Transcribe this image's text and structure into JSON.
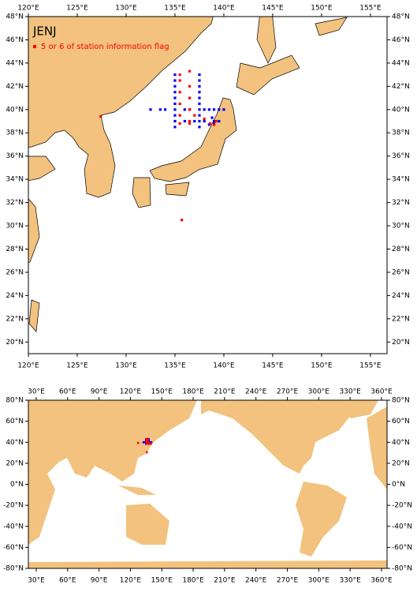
{
  "chart_data": [
    {
      "type": "scatter",
      "title": "JENJ",
      "xlim": [
        120,
        156.7
      ],
      "ylim": [
        19,
        48
      ],
      "xticks": [
        {
          "value": 120,
          "label": "120°E"
        },
        {
          "value": 125,
          "label": "125°E"
        },
        {
          "value": 130,
          "label": "130°E"
        },
        {
          "value": 135,
          "label": "135°E"
        },
        {
          "value": 140,
          "label": "140°E"
        },
        {
          "value": 145,
          "label": "145°E"
        },
        {
          "value": 150,
          "label": "150°E"
        },
        {
          "value": 155,
          "label": "155°E"
        }
      ],
      "yticks": [
        {
          "value": 20,
          "label": "20°N"
        },
        {
          "value": 22,
          "label": "22°N"
        },
        {
          "value": 24,
          "label": "24°N"
        },
        {
          "value": 26,
          "label": "26°N"
        },
        {
          "value": 28,
          "label": "28°N"
        },
        {
          "value": 30,
          "label": "30°N"
        },
        {
          "value": 32,
          "label": "32°N"
        },
        {
          "value": 34,
          "label": "34°N"
        },
        {
          "value": 36,
          "label": "36°N"
        },
        {
          "value": 38,
          "label": "38°N"
        },
        {
          "value": 40,
          "label": "40°N"
        },
        {
          "value": 42,
          "label": "42°N"
        },
        {
          "value": 44,
          "label": "44°N"
        },
        {
          "value": 46,
          "label": "46°N"
        },
        {
          "value": 48,
          "label": "48°N"
        }
      ],
      "series": [
        {
          "color": "#0000ff",
          "x": [
            135,
            135,
            135,
            135,
            135,
            135,
            135,
            135,
            135,
            135,
            137.5,
            137.5,
            137.5,
            137.5,
            137.5,
            137.5,
            137.5,
            137.5,
            137.5,
            137.5,
            132.5,
            133.5,
            134,
            136,
            136.5,
            138,
            138.5,
            139,
            139.5,
            140,
            136,
            137,
            138,
            139,
            139.5,
            138.5,
            139,
            138.8
          ],
          "y": [
            43,
            42.5,
            42,
            41.5,
            41,
            40.5,
            40,
            39.5,
            39,
            38.5,
            43,
            42.5,
            42,
            41.5,
            41,
            40.5,
            40,
            39.5,
            39,
            38.5,
            40,
            40,
            40,
            40,
            40,
            40,
            40,
            40,
            40,
            40,
            39,
            39,
            39,
            39,
            39,
            38.7,
            38.9,
            39.3
          ]
        },
        {
          "name": "5 or 6 of station information flag",
          "color": "#ff0000",
          "x": [
            135.5,
            135.5,
            135.5,
            135.5,
            135.5,
            135.5,
            136.5,
            136.5,
            136.5,
            136.5,
            136.5,
            136.5,
            137,
            138,
            138.6,
            139,
            139.2,
            127.4,
            135.7
          ],
          "y": [
            42.5,
            41.5,
            40.5,
            39.5,
            38.8,
            43,
            43.3,
            42,
            41,
            40,
            39,
            38.8,
            39.5,
            39.2,
            38.8,
            38.7,
            39,
            39.4,
            30.5
          ]
        }
      ]
    },
    {
      "type": "scatter",
      "xlim": [
        22.5,
        365.3
      ],
      "ylim": [
        -80,
        80
      ],
      "xticks": [
        {
          "value": 30,
          "label": "30°E"
        },
        {
          "value": 60,
          "label": "60°E"
        },
        {
          "value": 90,
          "label": "90°E"
        },
        {
          "value": 120,
          "label": "120°E"
        },
        {
          "value": 150,
          "label": "150°E"
        },
        {
          "value": 180,
          "label": "180°E"
        },
        {
          "value": 210,
          "label": "210°E"
        },
        {
          "value": 240,
          "label": "240°E"
        },
        {
          "value": 270,
          "label": "270°E"
        },
        {
          "value": 300,
          "label": "300°E"
        },
        {
          "value": 330,
          "label": "330°E"
        },
        {
          "value": 360,
          "label": "360°E"
        }
      ],
      "yticks": [
        {
          "value": 80,
          "label": "80°N"
        },
        {
          "value": 60,
          "label": "60°N"
        },
        {
          "value": 40,
          "label": "40°N"
        },
        {
          "value": 20,
          "label": "20°N"
        },
        {
          "value": 0,
          "label": "0°N"
        },
        {
          "value": -20,
          "label": "-20°N"
        },
        {
          "value": -40,
          "label": "-40°N"
        },
        {
          "value": -60,
          "label": "-60°N"
        },
        {
          "value": -80,
          "label": "-80°N"
        }
      ]
    }
  ]
}
